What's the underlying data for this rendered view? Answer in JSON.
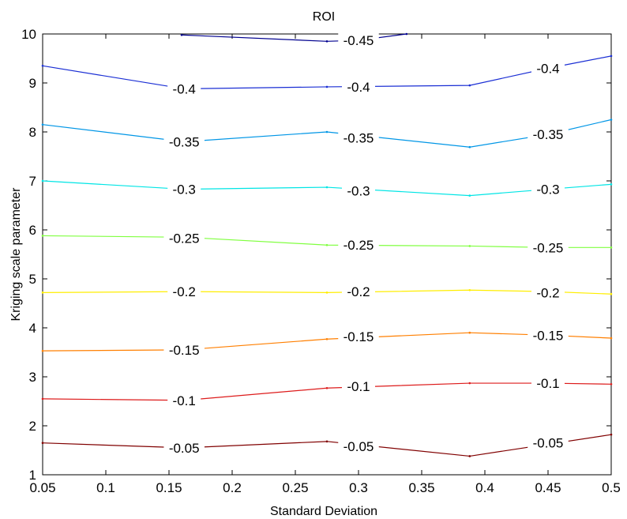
{
  "chart_data": {
    "type": "line",
    "title": "ROI",
    "xlabel": "Standard Deviation",
    "ylabel": "Kriging scale parameter",
    "xlim": [
      0.05,
      0.5
    ],
    "ylim": [
      1,
      10
    ],
    "x_ticks": [
      "0.05",
      "0.1",
      "0.15",
      "0.2",
      "0.25",
      "0.3",
      "0.35",
      "0.4",
      "0.45",
      "0.5"
    ],
    "y_ticks": [
      "1",
      "2",
      "3",
      "4",
      "5",
      "6",
      "7",
      "8",
      "9",
      "10"
    ],
    "grid": false,
    "legend": "none",
    "series": [
      {
        "name": "-0.05",
        "color": "#800000",
        "x": [
          0.05,
          0.162,
          0.275,
          0.388,
          0.5
        ],
        "y": [
          1.65,
          1.55,
          1.68,
          1.38,
          1.82
        ],
        "label_at": [
          [
            0.162,
            1.55
          ],
          [
            0.3,
            1.58
          ],
          [
            0.45,
            1.65
          ]
        ]
      },
      {
        "name": "-0.1",
        "color": "#dd1b1b",
        "x": [
          0.05,
          0.162,
          0.275,
          0.388,
          0.45,
          0.5
        ],
        "y": [
          2.55,
          2.52,
          2.77,
          2.87,
          2.87,
          2.85
        ],
        "label_at": [
          [
            0.162,
            2.52
          ],
          [
            0.3,
            2.81
          ],
          [
            0.45,
            2.87
          ]
        ]
      },
      {
        "name": "-0.15",
        "color": "#ff7f00",
        "x": [
          0.05,
          0.162,
          0.275,
          0.388,
          0.45,
          0.5
        ],
        "y": [
          3.53,
          3.55,
          3.77,
          3.9,
          3.85,
          3.79
        ],
        "label_at": [
          [
            0.162,
            3.55
          ],
          [
            0.3,
            3.82
          ],
          [
            0.45,
            3.85
          ]
        ]
      },
      {
        "name": "-0.2",
        "color": "#ffee00",
        "x": [
          0.05,
          0.162,
          0.275,
          0.388,
          0.45,
          0.5
        ],
        "y": [
          4.72,
          4.74,
          4.72,
          4.77,
          4.74,
          4.69
        ],
        "label_at": [
          [
            0.162,
            4.74
          ],
          [
            0.3,
            4.74
          ],
          [
            0.45,
            4.72
          ]
        ]
      },
      {
        "name": "-0.25",
        "color": "#80ff40",
        "x": [
          0.05,
          0.162,
          0.275,
          0.388,
          0.45,
          0.5
        ],
        "y": [
          5.88,
          5.85,
          5.69,
          5.67,
          5.64,
          5.64
        ],
        "label_at": [
          [
            0.162,
            5.83
          ],
          [
            0.3,
            5.69
          ],
          [
            0.45,
            5.64
          ]
        ]
      },
      {
        "name": "-0.3",
        "color": "#00e5e5",
        "x": [
          0.05,
          0.162,
          0.275,
          0.388,
          0.45,
          0.5
        ],
        "y": [
          7.0,
          6.83,
          6.87,
          6.7,
          6.83,
          6.93
        ],
        "label_at": [
          [
            0.162,
            6.83
          ],
          [
            0.3,
            6.8
          ],
          [
            0.45,
            6.83
          ]
        ]
      },
      {
        "name": "-0.35",
        "color": "#0096e6",
        "x": [
          0.05,
          0.162,
          0.275,
          0.388,
          0.45,
          0.5
        ],
        "y": [
          8.15,
          7.8,
          8.0,
          7.69,
          7.95,
          8.25
        ],
        "label_at": [
          [
            0.162,
            7.8
          ],
          [
            0.3,
            7.88
          ],
          [
            0.45,
            7.95
          ]
        ]
      },
      {
        "name": "-0.4",
        "color": "#1a2ed4",
        "x": [
          0.05,
          0.162,
          0.275,
          0.388,
          0.45,
          0.5
        ],
        "y": [
          9.35,
          8.88,
          8.92,
          8.95,
          9.3,
          9.55
        ],
        "label_at": [
          [
            0.162,
            8.88
          ],
          [
            0.3,
            8.92
          ],
          [
            0.45,
            9.3
          ]
        ]
      },
      {
        "name": "-0.45",
        "color": "#00008f",
        "x": [
          0.16,
          0.275,
          0.3,
          0.338
        ],
        "y": [
          9.98,
          9.85,
          9.87,
          10.0
        ],
        "label_at": [
          [
            0.3,
            9.87
          ]
        ]
      }
    ]
  }
}
